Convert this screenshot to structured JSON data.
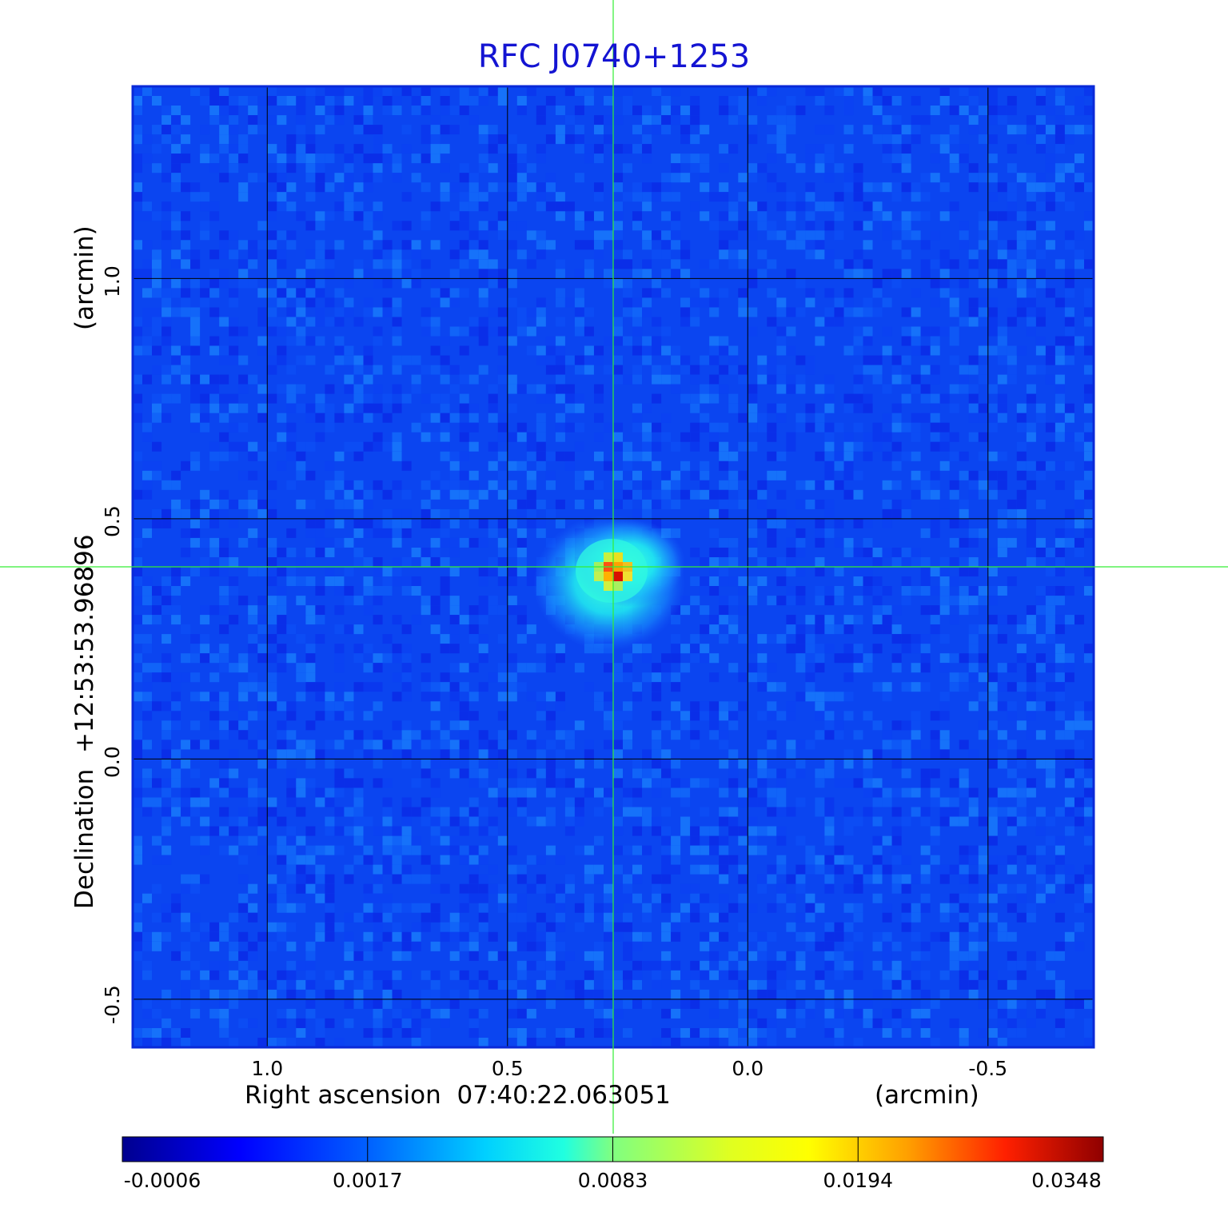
{
  "chart_data": {
    "type": "heatmap",
    "title": "RFC J0740+1253",
    "xlabel": "Right ascension  07:40:22.063051",
    "xunit": "(arcmin)",
    "ylabel": "Declination  +12:53:53.96896",
    "yunit": "(arcmin)",
    "x_ticks": [
      "1.0",
      "0.5",
      "0.0",
      "-0.5"
    ],
    "x_tick_values": [
      1.0,
      0.5,
      0.0,
      -0.5
    ],
    "y_ticks": [
      "1.0",
      "0.5",
      "0.0",
      "-0.5"
    ],
    "y_tick_values": [
      1.0,
      0.5,
      0.0,
      -0.5
    ],
    "xlim": [
      1.28,
      -0.72
    ],
    "ylim": [
      -0.6,
      1.4
    ],
    "grid": true,
    "crosshair": {
      "x": 0.28,
      "y": 0.4
    },
    "source": {
      "x": 0.28,
      "y": 0.4,
      "peak": 0.0348
    },
    "colorbar": {
      "labels": [
        "-0.0006",
        "0.0017",
        "0.0083",
        "0.0194",
        "0.0348"
      ],
      "values": [
        -0.0006,
        0.0017,
        0.0083,
        0.0194,
        0.0348
      ],
      "colormap": "jet"
    },
    "colors": {
      "title": "#1414d2",
      "crosshair": "#33ee33",
      "frame": "#0a2ad8",
      "grid": "#000000"
    }
  }
}
